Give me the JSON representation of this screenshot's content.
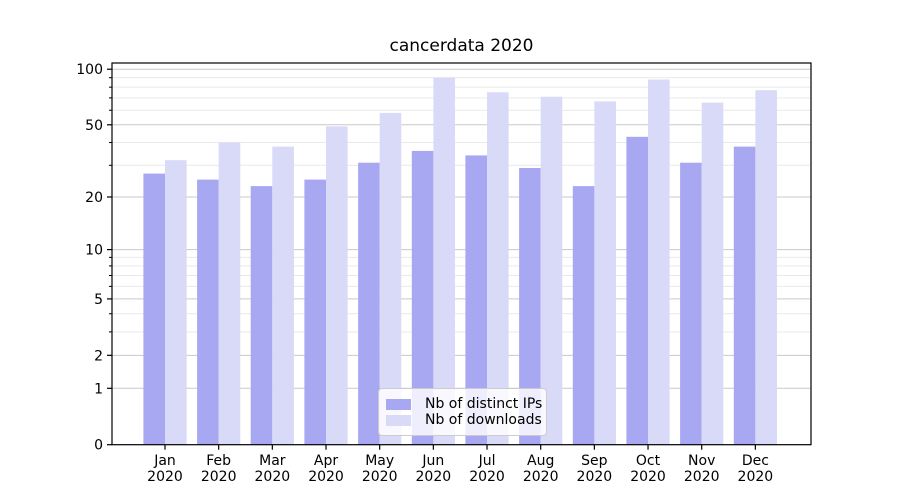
{
  "window": {
    "background": "#ffffff"
  },
  "chart_data": {
    "type": "bar",
    "title": "cancerdata 2020",
    "categories": [
      "Jan 2020",
      "Feb 2020",
      "Mar 2020",
      "Apr 2020",
      "May 2020",
      "Jun 2020",
      "Jul 2020",
      "Aug 2020",
      "Sep 2020",
      "Oct 2020",
      "Nov 2020",
      "Dec 2020"
    ],
    "series": [
      {
        "name": "Nb of distinct IPs",
        "color": "#a8a8f2",
        "values": [
          27,
          25,
          23,
          25,
          31,
          36,
          34,
          29,
          23,
          43,
          31,
          38
        ]
      },
      {
        "name": "Nb of downloads",
        "color": "#d9d9f8",
        "values": [
          32,
          40,
          38,
          49,
          58,
          90,
          75,
          71,
          67,
          88,
          66,
          77
        ]
      }
    ],
    "xlabel": "",
    "ylabel": "",
    "yscale": "symlog",
    "ylim": [
      0,
      108
    ],
    "yticks": [
      0,
      1,
      2,
      5,
      10,
      20,
      50,
      100
    ],
    "yticks_minor": [
      3,
      4,
      6,
      7,
      8,
      9,
      30,
      40,
      60,
      70,
      80,
      90
    ],
    "grid": "on",
    "legend_position": "lower center",
    "style": {
      "grid_color_major": "#c9c9c9",
      "grid_color_minor": "#e9e9e9",
      "spine_color": "#000000",
      "text_color": "#000000"
    }
  }
}
